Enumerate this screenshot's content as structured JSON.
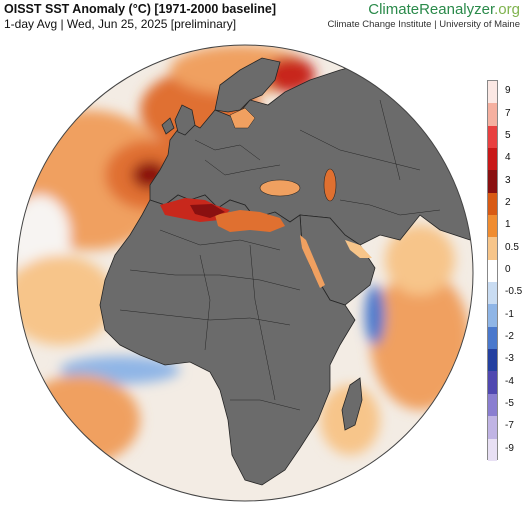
{
  "header": {
    "title": "OISST SST Anomaly (°C) [1971-2000 baseline]",
    "subtitle": "1-day Avg | Wed, Jun 25, 2025 [preliminary]"
  },
  "brand": {
    "name_main": "ClimateReanalyzer",
    "name_tld": ".org",
    "institution": "Climate Change Institute | University of Maine"
  },
  "colorbar": {
    "labels": [
      "9",
      "7",
      "5",
      "4",
      "3",
      "2",
      "1",
      "0.5",
      "0",
      "-0.5",
      "-1",
      "-2",
      "-3",
      "-4",
      "-5",
      "-7",
      "-9"
    ],
    "colors": [
      "#fbe8e4",
      "#f5b0a0",
      "#e84040",
      "#c81818",
      "#8a1010",
      "#d85a14",
      "#f08c30",
      "#f7c58a",
      "#ffffff",
      "#c9dcf2",
      "#8fb5e6",
      "#4a78cc",
      "#2440a0",
      "#5048b0",
      "#8a7ed0",
      "#c0b4e4",
      "#e8e0f4"
    ]
  },
  "map": {
    "colors": {
      "ocean_neutral": "#f3ece4",
      "land": "#6b6b6b",
      "border": "#262626",
      "warm_light": "#f7c58a",
      "warm": "#f0a060",
      "warm_strong": "#e07030",
      "hot": "#c8281c",
      "very_hot": "#8a1010",
      "cool": "#8fb5e6",
      "cold": "#4a78cc"
    }
  }
}
